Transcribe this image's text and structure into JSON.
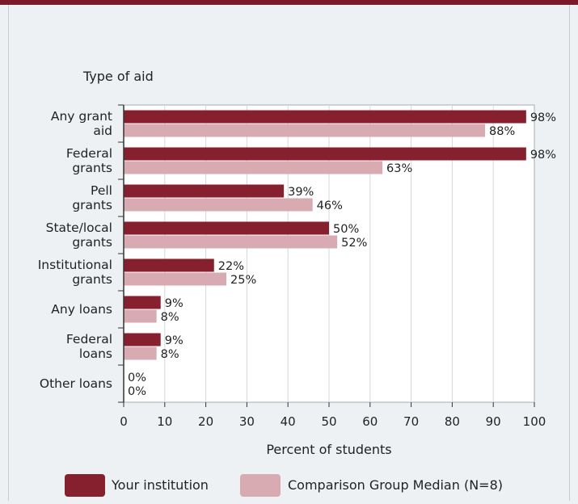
{
  "chart_data": {
    "type": "bar",
    "orientation": "horizontal",
    "ytitle": "Type of aid",
    "xlabel": "Percent of students",
    "xlim": [
      0,
      100
    ],
    "xticks": [
      0,
      10,
      20,
      30,
      40,
      50,
      60,
      70,
      80,
      90,
      100
    ],
    "grid": true,
    "legend_position": "bottom",
    "categories": [
      [
        "Any grant",
        "aid"
      ],
      [
        "Federal",
        "grants"
      ],
      [
        "Pell",
        "grants"
      ],
      [
        "State/local",
        "grants"
      ],
      [
        "Institutional",
        "grants"
      ],
      [
        "Any loans"
      ],
      [
        "Federal",
        "loans"
      ],
      [
        "Other loans"
      ]
    ],
    "series": [
      {
        "name": "Your institution",
        "color": "#861f2e",
        "values": [
          98,
          98,
          39,
          50,
          22,
          9,
          9,
          0
        ]
      },
      {
        "name": "Comparison Group Median (N=8)",
        "color": "#d8aab1",
        "values": [
          88,
          63,
          46,
          52,
          25,
          8,
          8,
          0
        ]
      }
    ],
    "value_suffix": "%"
  },
  "colors": {
    "top_rule": "#7d1a2a",
    "page_bg": "#eef1f4",
    "plot_bg": "#ffffff",
    "grid": "#d3d8dc",
    "axis": "#333333"
  }
}
